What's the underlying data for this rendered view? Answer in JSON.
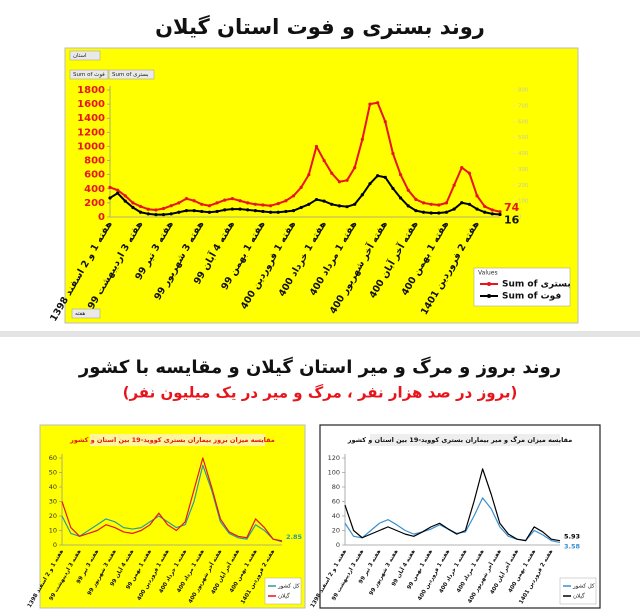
{
  "heading": "روند بروز و مرگ و میر استان گیلان و مقایسه با کشور",
  "subheading": "(بروز در صد هزار نفر ، مرگ و میر در یک میلیون نفر)",
  "chart_data": [
    {
      "type": "line",
      "title": "روند بستری و فوت استان گیلان",
      "filters": [
        "استان",
        "Sum of فوت",
        "Sum of بستری",
        "هفته"
      ],
      "legend_title": "Values",
      "categories": [
        "هفته 1 و 2 اسفند 1398",
        null,
        null,
        null,
        "هفته 3 اردیبهشت 99",
        null,
        null,
        null,
        "هفته 3 تیر 99",
        null,
        null,
        null,
        "هفته 3 شهریور 99",
        null,
        null,
        null,
        "هفته 4 آبان 99",
        null,
        null,
        null,
        "هفته 1 بهمن 99",
        null,
        null,
        null,
        "هفته 1 فروردین 400",
        null,
        null,
        null,
        "هفته 1 خرداد 400",
        null,
        null,
        null,
        "هفته 1 مرداد 400",
        null,
        null,
        null,
        "هفته آخر شهریور 400",
        null,
        null,
        null,
        "هفته آخر آبان 400",
        null,
        null,
        null,
        "هفته 1 بهمن 400",
        null,
        null,
        null,
        "هفته 2 فروردین 1401",
        null,
        null,
        null
      ],
      "ylim": [
        0,
        1800
      ],
      "yticks": [
        0,
        200,
        400,
        600,
        800,
        1000,
        1200,
        1400,
        1600,
        1800
      ],
      "y2lim": [
        0,
        800
      ],
      "y2ticks": [
        0,
        100,
        200,
        300,
        400,
        500,
        600,
        700,
        800
      ],
      "legend": "bottom-right",
      "series": [
        {
          "name": "Sum of بستری",
          "color": "#e8141b",
          "values": [
            420,
            380,
            300,
            200,
            150,
            110,
            100,
            120,
            160,
            200,
            260,
            230,
            180,
            160,
            200,
            240,
            260,
            230,
            200,
            180,
            170,
            160,
            190,
            230,
            300,
            420,
            600,
            1000,
            800,
            620,
            500,
            520,
            700,
            1100,
            1600,
            1620,
            1350,
            900,
            600,
            380,
            250,
            200,
            180,
            170,
            200,
            450,
            700,
            620,
            300,
            150,
            100,
            74
          ]
        },
        {
          "name": "Sum of فوت",
          "color": "#000000",
          "axis": "y2",
          "values": [
            120,
            150,
            100,
            60,
            30,
            20,
            15,
            15,
            20,
            30,
            40,
            40,
            35,
            30,
            35,
            45,
            50,
            50,
            45,
            40,
            35,
            30,
            30,
            35,
            40,
            60,
            80,
            110,
            100,
            80,
            70,
            65,
            80,
            140,
            210,
            260,
            250,
            180,
            120,
            70,
            40,
            30,
            25,
            25,
            30,
            50,
            90,
            80,
            50,
            30,
            20,
            16
          ]
        }
      ]
    },
    {
      "type": "line",
      "title": "مقایسه میزان بروز بیماران بستری کووید-19 بین استان و کشور",
      "categories": [
        "هفته 1 و 2 اسفند 1398",
        null,
        "هفته 3 اردیبهشت 99",
        null,
        "هفته 3 تیر 99",
        null,
        "هفته 3 شهریور 99",
        null,
        "هفته 4 آبان 99",
        null,
        "هفته 1 بهمن 99",
        null,
        "هفته 1 فروردین 400",
        null,
        "هفته 1 خرداد 400",
        null,
        "هفته 1 مرداد 400",
        null,
        "هفته آخر شهریور 400",
        null,
        "هفته آخر آبان 400",
        null,
        "هفته 1 بهمن 400",
        null,
        "هفته 2 فروردین 1401",
        null
      ],
      "ylim": [
        0,
        60
      ],
      "yticks": [
        0,
        10,
        20,
        30,
        40,
        50,
        60
      ],
      "legend": "bottom-right",
      "series": [
        {
          "name": "کل کشور",
          "color": "#2a9d9f",
          "values": [
            20,
            8,
            6,
            10,
            14,
            18,
            16,
            12,
            11,
            12,
            16,
            20,
            16,
            12,
            14,
            30,
            55,
            38,
            16,
            8,
            5,
            4,
            14,
            10,
            4,
            2.2
          ]
        },
        {
          "name": "گیلان",
          "color": "#e8141b",
          "values": [
            30,
            12,
            6,
            8,
            10,
            14,
            12,
            9,
            8,
            10,
            14,
            22,
            14,
            10,
            16,
            38,
            60,
            40,
            18,
            9,
            6,
            5,
            18,
            12,
            4,
            2.85
          ]
        }
      ]
    },
    {
      "type": "line",
      "title": "مقایسه میزان مرگ و میر بیماران بستری کووید-19 بین استان و کشور",
      "categories": [
        "هفته 1 و 2 اسفند 1398",
        null,
        "هفته 3 اردیبهشت 99",
        null,
        "هفته 3 تیر 99",
        null,
        "هفته 3 شهریور 99",
        null,
        "هفته 4 آبان 99",
        null,
        "هفته 1 بهمن 99",
        null,
        "هفته 1 فروردین 400",
        null,
        "هفته 1 خرداد 400",
        null,
        "هفته 1 مرداد 400",
        null,
        "هفته آخر شهریور 400",
        null,
        "هفته آخر آبان 400",
        null,
        "هفته 1 بهمن 400",
        null,
        "هفته 2 فروردین 1401",
        null
      ],
      "ylim": [
        0,
        120
      ],
      "yticks": [
        0,
        20,
        40,
        60,
        80,
        100,
        120
      ],
      "legend": "bottom-right",
      "series": [
        {
          "name": "کل کشور",
          "color": "#3a8fd0",
          "values": [
            30,
            12,
            10,
            20,
            30,
            35,
            28,
            20,
            15,
            18,
            22,
            28,
            22,
            16,
            18,
            40,
            65,
            50,
            25,
            12,
            8,
            6,
            20,
            14,
            6,
            3.58
          ]
        },
        {
          "name": "گیلان",
          "color": "#000000",
          "values": [
            55,
            20,
            10,
            15,
            20,
            25,
            20,
            15,
            12,
            18,
            25,
            30,
            22,
            15,
            20,
            60,
            105,
            70,
            30,
            15,
            8,
            6,
            25,
            18,
            8,
            5.93
          ]
        }
      ]
    }
  ]
}
